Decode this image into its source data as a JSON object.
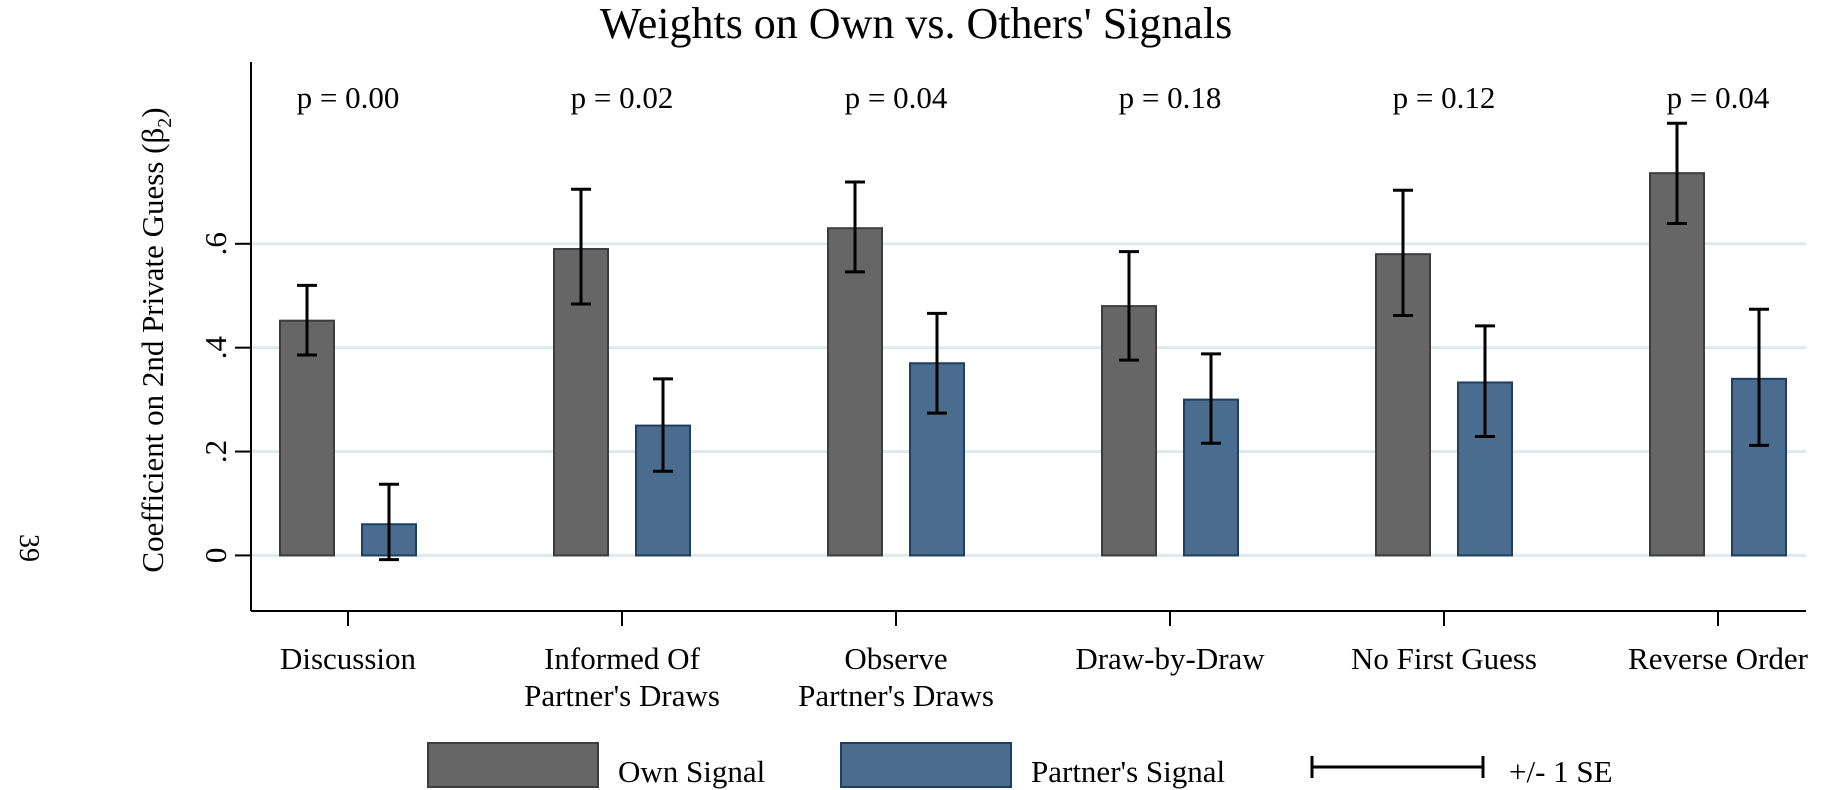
{
  "page_number": "39",
  "chart_data": {
    "type": "bar",
    "title": "Weights on Own vs. Others' Signals",
    "ylabel": "Coefficient on 2nd Private Guess (β",
    "ylabel_subscript": "2",
    "ylabel_close": ")",
    "ylim": [
      -0.107,
      0.95
    ],
    "yticks": [
      0,
      0.2,
      0.4,
      0.6
    ],
    "ytick_labels": [
      "0",
      ".2",
      ".4",
      ".6"
    ],
    "grid": true,
    "categories": [
      {
        "line1": "Discussion",
        "line2": ""
      },
      {
        "line1": "Informed Of",
        "line2": "Partner's Draws"
      },
      {
        "line1": "Observe",
        "line2": "Partner's Draws"
      },
      {
        "line1": "Draw-by-Draw",
        "line2": ""
      },
      {
        "line1": "No First Guess",
        "line2": ""
      },
      {
        "line1": "Reverse Order",
        "line2": ""
      }
    ],
    "pvalues": [
      "p = 0.00",
      "p = 0.02",
      "p = 0.04",
      "p = 0.18",
      "p = 0.12",
      "p = 0.04"
    ],
    "series": [
      {
        "name": "Own Signal",
        "color": "#666666",
        "edge": "#3d3d3d",
        "values": [
          0.452,
          0.59,
          0.63,
          0.48,
          0.58,
          0.736
        ],
        "se_low": [
          0.386,
          0.484,
          0.546,
          0.376,
          0.462,
          0.639
        ],
        "se_high": [
          0.52,
          0.705,
          0.719,
          0.585,
          0.703,
          0.832
        ]
      },
      {
        "name": "Partner's Signal",
        "color": "#4a6d8f",
        "edge": "#1f3f61",
        "values": [
          0.06,
          0.25,
          0.37,
          0.3,
          0.333,
          0.34
        ],
        "se_low": [
          -0.008,
          0.162,
          0.274,
          0.216,
          0.229,
          0.212
        ],
        "se_high": [
          0.137,
          0.34,
          0.466,
          0.388,
          0.442,
          0.474
        ]
      }
    ],
    "error_bar_label": "+/- 1 SE",
    "legend_position": "bottom"
  }
}
